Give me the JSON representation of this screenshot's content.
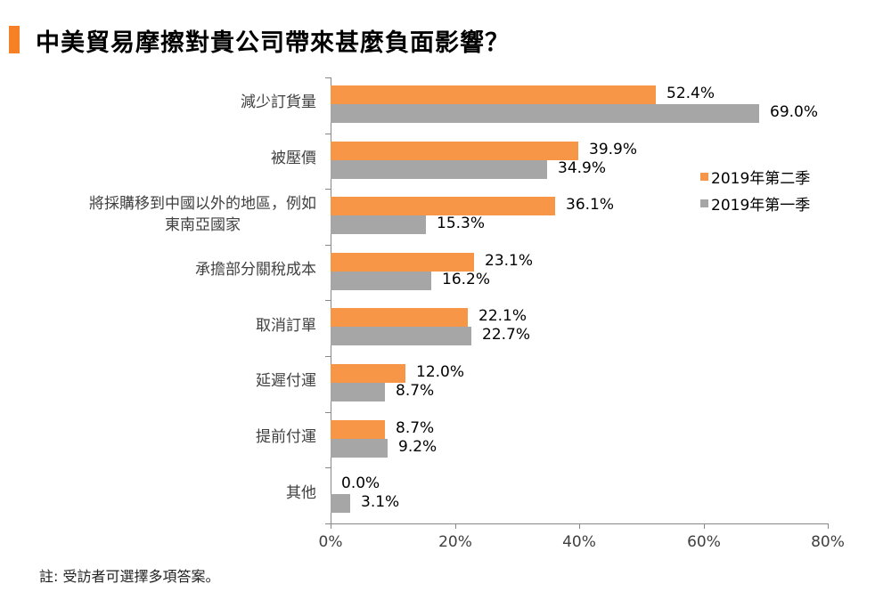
{
  "title": "中美貿易摩擦對貴公司帶來甚麼負面影響？",
  "note": "註: 受訪者可選擇多項答案。",
  "colors": {
    "accent": "#f58025",
    "q2": "#f79646",
    "q1": "#a6a6a6"
  },
  "chart_data": {
    "type": "bar",
    "orientation": "horizontal",
    "title": "中美貿易摩擦對貴公司帶來甚麼負面影響？",
    "categories": [
      "減少訂貨量",
      "被壓價",
      "將採購移到中國以外的地區，例如東南亞國家",
      "承擔部分關稅成本",
      "取消訂單",
      "延遲付運",
      "提前付運",
      "其他"
    ],
    "category_lines": [
      [
        "減少訂貨量"
      ],
      [
        "被壓價"
      ],
      [
        "將採購移到中國以外的地區，例如",
        "東南亞國家"
      ],
      [
        "承擔部分關稅成本"
      ],
      [
        "取消訂單"
      ],
      [
        "延遲付運"
      ],
      [
        "提前付運"
      ],
      [
        "其他"
      ]
    ],
    "series": [
      {
        "name": "2019年第二季",
        "color": "#f79646",
        "values": [
          52.4,
          39.9,
          36.1,
          23.1,
          22.1,
          12.0,
          8.7,
          0.0
        ],
        "labels": [
          "52.4%",
          "39.9%",
          "36.1%",
          "23.1%",
          "22.1%",
          "12.0%",
          "8.7%",
          "0.0%"
        ]
      },
      {
        "name": "2019年第一季",
        "color": "#a6a6a6",
        "values": [
          69.0,
          34.9,
          15.3,
          16.2,
          22.7,
          8.7,
          9.2,
          3.1
        ],
        "labels": [
          "69.0%",
          "34.9%",
          "15.3%",
          "16.2%",
          "22.7%",
          "8.7%",
          "9.2%",
          "3.1%"
        ]
      }
    ],
    "xlabel": "",
    "ylabel": "",
    "xlim": [
      0,
      80
    ],
    "xticks": [
      "0%",
      "20%",
      "40%",
      "60%",
      "80%"
    ],
    "grid": false,
    "legend_position": "right"
  }
}
